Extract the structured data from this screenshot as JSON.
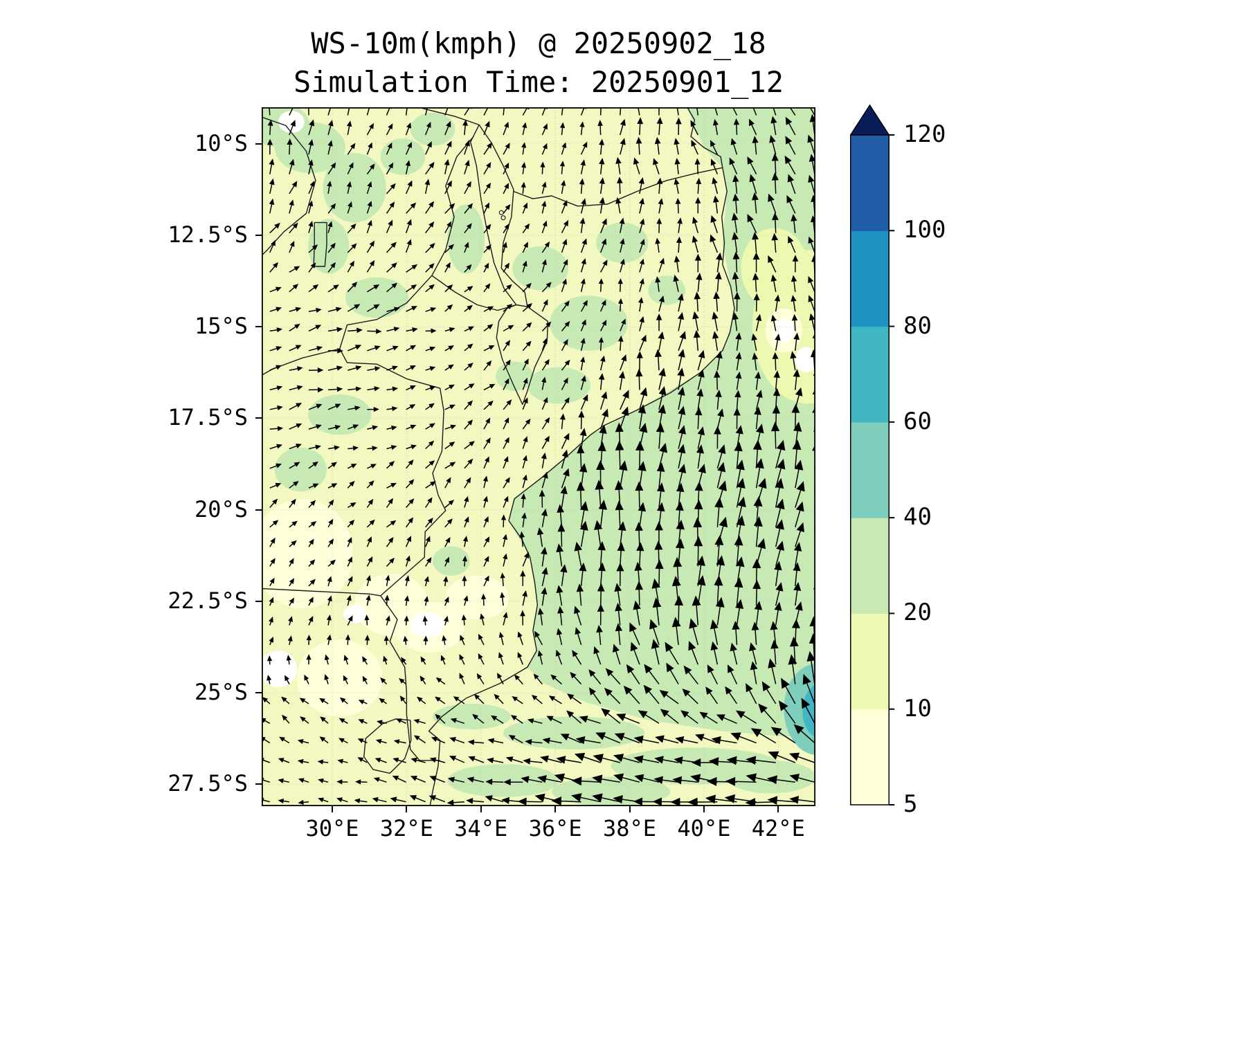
{
  "figure": {
    "title_line1": "WS-10m(kmph) @ 20250902_18",
    "title_line2": "Simulation Time: 20250901_12"
  },
  "axes": {
    "x_ticks": [
      "30°E",
      "32°E",
      "34°E",
      "36°E",
      "38°E",
      "40°E",
      "42°E"
    ],
    "x_tick_lons": [
      30,
      32,
      34,
      36,
      38,
      40,
      42
    ],
    "y_ticks": [
      "10°S",
      "12.5°S",
      "15°S",
      "17.5°S",
      "20°S",
      "22.5°S",
      "25°S",
      "27.5°S"
    ],
    "y_tick_lats": [
      10,
      12.5,
      15,
      17.5,
      20,
      22.5,
      25,
      27.5
    ]
  },
  "colorbar": {
    "tick_labels": [
      "5",
      "10",
      "20",
      "40",
      "60",
      "80",
      "100",
      "120"
    ],
    "segment_colors": [
      "#ffffd9",
      "#edf8b1",
      "#c7e9b4",
      "#7fcdbb",
      "#41b6c4",
      "#1d91c0",
      "#225ea8"
    ],
    "extend_color": "#081d58"
  },
  "chart_data": {
    "type": "heatmap",
    "title": "WS-10m(kmph) @ 20250902_18",
    "subtitle": "Simulation Time: 20250901_12",
    "variable": "10 m wind speed with wind vector quiver overlay",
    "units": "kmph",
    "lon_range_east": [
      28.1,
      43.0
    ],
    "lat_range_south": [
      9.0,
      28.1
    ],
    "contour_levels": [
      5,
      10,
      20,
      40,
      60,
      80,
      100,
      120
    ],
    "colormap": [
      "#ffffd9",
      "#edf8b1",
      "#c7e9b4",
      "#7fcdbb",
      "#41b6c4",
      "#1d91c0",
      "#225ea8",
      "#081d58"
    ],
    "base_color": "#f2f8c0",
    "wind_grid": {
      "lons": [
        29,
        31,
        33,
        35,
        37,
        39,
        41,
        43
      ],
      "lats_south": [
        9,
        11,
        13,
        15,
        17,
        19,
        21,
        23,
        25,
        26.5,
        28
      ],
      "u_kmph": [
        [
          2,
          3,
          3,
          2,
          1,
          -2,
          -4,
          -5
        ],
        [
          3,
          4,
          4,
          3,
          2,
          -2,
          -4,
          -5
        ],
        [
          5,
          5,
          4,
          3,
          2,
          0,
          -3,
          -4
        ],
        [
          9,
          8,
          6,
          4,
          3,
          2,
          0,
          -2
        ],
        [
          8,
          8,
          5,
          4,
          4,
          3,
          2,
          1
        ],
        [
          5,
          5,
          4,
          3,
          2,
          3,
          4,
          4
        ],
        [
          3,
          3,
          3,
          2,
          0,
          2,
          5,
          6
        ],
        [
          2,
          1,
          1,
          0,
          -3,
          -2,
          2,
          5
        ],
        [
          -2,
          -3,
          -4,
          -5,
          -10,
          -12,
          -10,
          -4
        ],
        [
          -5,
          -6,
          -8,
          -14,
          -20,
          -24,
          -26,
          -22
        ],
        [
          -6,
          -8,
          -12,
          -20,
          -26,
          -28,
          -28,
          -26
        ]
      ],
      "v_kmph": [
        [
          10,
          10,
          9,
          8,
          10,
          12,
          14,
          14
        ],
        [
          9,
          9,
          8,
          8,
          10,
          13,
          15,
          15
        ],
        [
          7,
          7,
          6,
          6,
          9,
          13,
          15,
          15
        ],
        [
          3,
          2,
          2,
          4,
          8,
          13,
          15,
          15
        ],
        [
          2,
          1,
          2,
          6,
          14,
          18,
          18,
          17
        ],
        [
          3,
          3,
          4,
          10,
          22,
          26,
          26,
          24
        ],
        [
          4,
          4,
          5,
          10,
          24,
          28,
          27,
          25
        ],
        [
          4,
          4,
          5,
          8,
          22,
          26,
          26,
          24
        ],
        [
          3,
          3,
          4,
          5,
          12,
          16,
          20,
          30
        ],
        [
          2,
          2,
          3,
          4,
          6,
          6,
          4,
          12
        ],
        [
          1,
          1,
          2,
          3,
          3,
          2,
          0,
          2
        ]
      ]
    },
    "regions": [
      {
        "name": "ocean-channel",
        "level_kmph": "20-40",
        "color": "#c7e9b4",
        "shape": "polygon",
        "points": [
          [
            43.2,
            8.9
          ],
          [
            39.5,
            8.9
          ],
          [
            40.0,
            10.1
          ],
          [
            40.5,
            10.65
          ],
          [
            40.62,
            11.3
          ],
          [
            40.5,
            12.7
          ],
          [
            40.72,
            13.9
          ],
          [
            40.82,
            14.5
          ],
          [
            40.6,
            15.5
          ],
          [
            39.9,
            16.25
          ],
          [
            38.15,
            17.3
          ],
          [
            36.95,
            17.95
          ],
          [
            36.25,
            18.6
          ],
          [
            35.6,
            19.15
          ],
          [
            34.9,
            19.7
          ],
          [
            34.75,
            20.3
          ],
          [
            35.32,
            21.3
          ],
          [
            35.52,
            22.6
          ],
          [
            35.4,
            23.3
          ],
          [
            35.5,
            23.85
          ],
          [
            35.25,
            24.3
          ],
          [
            35.7,
            24.75
          ],
          [
            36.8,
            25.25
          ],
          [
            38.5,
            25.75
          ],
          [
            40.5,
            26.05
          ],
          [
            42.2,
            26.2
          ],
          [
            43.2,
            26.1
          ]
        ]
      },
      {
        "name": "ocean-pale-1",
        "level_kmph": "10-20",
        "color": "#edf8b1",
        "shape": "ellipse",
        "lon": 42.8,
        "lat": 15.0,
        "rx": 1.5,
        "ry": 2.1
      },
      {
        "name": "ocean-pale-2",
        "level_kmph": "10-20",
        "color": "#edf8b1",
        "shape": "ellipse",
        "lon": 41.9,
        "lat": 13.4,
        "rx": 0.9,
        "ry": 1.1
      },
      {
        "name": "land-green-1",
        "level_kmph": "20-40",
        "color": "#c7e9b4",
        "shape": "ellipse",
        "lon": 29.4,
        "lat": 10.1,
        "rx": 0.95,
        "ry": 0.7
      },
      {
        "name": "land-green-2",
        "level_kmph": "20-40",
        "color": "#c7e9b4",
        "shape": "ellipse",
        "lon": 30.6,
        "lat": 11.2,
        "rx": 0.85,
        "ry": 0.95
      },
      {
        "name": "land-green-3",
        "level_kmph": "20-40",
        "color": "#c7e9b4",
        "shape": "ellipse",
        "lon": 31.9,
        "lat": 10.35,
        "rx": 0.6,
        "ry": 0.5
      },
      {
        "name": "land-green-4",
        "level_kmph": "20-40",
        "color": "#c7e9b4",
        "shape": "ellipse",
        "lon": 29.9,
        "lat": 12.8,
        "rx": 0.55,
        "ry": 0.75
      },
      {
        "name": "land-green-5",
        "level_kmph": "20-40",
        "color": "#c7e9b4",
        "shape": "ellipse",
        "lon": 31.2,
        "lat": 14.2,
        "rx": 0.85,
        "ry": 0.55
      },
      {
        "name": "land-green-6",
        "level_kmph": "20-40",
        "color": "#c7e9b4",
        "shape": "ellipse",
        "lon": 33.6,
        "lat": 12.6,
        "rx": 0.5,
        "ry": 0.95
      },
      {
        "name": "land-green-7",
        "level_kmph": "20-40",
        "color": "#c7e9b4",
        "shape": "ellipse",
        "lon": 35.6,
        "lat": 13.4,
        "rx": 0.75,
        "ry": 0.6
      },
      {
        "name": "land-green-8",
        "level_kmph": "20-40",
        "color": "#c7e9b4",
        "shape": "ellipse",
        "lon": 36.9,
        "lat": 14.9,
        "rx": 1.05,
        "ry": 0.75
      },
      {
        "name": "land-green-9",
        "level_kmph": "20-40",
        "color": "#c7e9b4",
        "shape": "ellipse",
        "lon": 36.1,
        "lat": 16.6,
        "rx": 0.85,
        "ry": 0.5
      },
      {
        "name": "land-green-10",
        "level_kmph": "20-40",
        "color": "#c7e9b4",
        "shape": "ellipse",
        "lon": 34.9,
        "lat": 16.35,
        "rx": 0.5,
        "ry": 0.4
      },
      {
        "name": "land-green-11",
        "level_kmph": "20-40",
        "color": "#c7e9b4",
        "shape": "ellipse",
        "lon": 30.2,
        "lat": 17.4,
        "rx": 0.85,
        "ry": 0.55
      },
      {
        "name": "land-green-12",
        "level_kmph": "20-40",
        "color": "#c7e9b4",
        "shape": "ellipse",
        "lon": 29.15,
        "lat": 18.9,
        "rx": 0.7,
        "ry": 0.6
      },
      {
        "name": "land-green-13",
        "level_kmph": "20-40",
        "color": "#c7e9b4",
        "shape": "ellipse",
        "lon": 33.2,
        "lat": 21.4,
        "rx": 0.5,
        "ry": 0.4
      },
      {
        "name": "land-green-14",
        "level_kmph": "20-40",
        "color": "#c7e9b4",
        "shape": "ellipse",
        "lon": 28.6,
        "lat": 9.5,
        "rx": 0.8,
        "ry": 0.6
      },
      {
        "name": "land-green-15",
        "level_kmph": "20-40",
        "color": "#c7e9b4",
        "shape": "ellipse",
        "lon": 32.7,
        "lat": 9.6,
        "rx": 0.6,
        "ry": 0.45
      },
      {
        "name": "land-green-16",
        "level_kmph": "20-40",
        "color": "#c7e9b4",
        "shape": "ellipse",
        "lon": 37.8,
        "lat": 12.7,
        "rx": 0.7,
        "ry": 0.55
      },
      {
        "name": "land-green-17",
        "level_kmph": "20-40",
        "color": "#c7e9b4",
        "shape": "ellipse",
        "lon": 39.0,
        "lat": 14.0,
        "rx": 0.5,
        "ry": 0.4
      },
      {
        "name": "south-streak-1",
        "level_kmph": "20-40",
        "color": "#c7e9b4",
        "shape": "ellipse",
        "lon": 36.5,
        "lat": 26.1,
        "rx": 1.9,
        "ry": 0.45
      },
      {
        "name": "south-streak-2",
        "level_kmph": "20-40",
        "color": "#c7e9b4",
        "shape": "ellipse",
        "lon": 39.8,
        "lat": 27.0,
        "rx": 2.3,
        "ry": 0.5
      },
      {
        "name": "south-streak-3",
        "level_kmph": "20-40",
        "color": "#c7e9b4",
        "shape": "ellipse",
        "lon": 34.6,
        "lat": 27.4,
        "rx": 1.5,
        "ry": 0.45
      },
      {
        "name": "south-streak-4",
        "level_kmph": "20-40",
        "color": "#c7e9b4",
        "shape": "ellipse",
        "lon": 33.75,
        "lat": 25.65,
        "rx": 1.05,
        "ry": 0.35
      },
      {
        "name": "south-streak-5",
        "level_kmph": "20-40",
        "color": "#c7e9b4",
        "shape": "ellipse",
        "lon": 37.5,
        "lat": 27.7,
        "rx": 1.6,
        "ry": 0.4
      },
      {
        "name": "south-streak-6",
        "level_kmph": "20-40",
        "color": "#c7e9b4",
        "shape": "ellipse",
        "lon": 41.8,
        "lat": 27.3,
        "rx": 1.2,
        "ry": 0.45
      },
      {
        "name": "land-cream-1",
        "level_kmph": "5-10",
        "color": "#ffffd9",
        "shape": "ellipse",
        "lon": 29.2,
        "lat": 21.2,
        "rx": 1.35,
        "ry": 1.5
      },
      {
        "name": "land-cream-2",
        "level_kmph": "5-10",
        "color": "#ffffd9",
        "shape": "ellipse",
        "lon": 31.6,
        "lat": 22.6,
        "rx": 1.0,
        "ry": 0.85
      },
      {
        "name": "land-cream-3",
        "level_kmph": "5-10",
        "color": "#ffffd9",
        "shape": "ellipse",
        "lon": 30.2,
        "lat": 24.6,
        "rx": 1.15,
        "ry": 1.05
      },
      {
        "name": "land-cream-4",
        "level_kmph": "5-10",
        "color": "#ffffd9",
        "shape": "ellipse",
        "lon": 33.9,
        "lat": 22.4,
        "rx": 0.85,
        "ry": 0.6
      },
      {
        "name": "land-cream-5",
        "level_kmph": "5-10",
        "color": "#ffffd9",
        "shape": "ellipse",
        "lon": 32.6,
        "lat": 23.2,
        "rx": 0.95,
        "ry": 0.7
      },
      {
        "name": "land-white-1",
        "level_kmph": "<5",
        "color": "#ffffff",
        "shape": "ellipse",
        "lon": 32.55,
        "lat": 23.15,
        "rx": 0.45,
        "ry": 0.35
      },
      {
        "name": "land-white-2",
        "level_kmph": "<5",
        "color": "#ffffff",
        "shape": "ellipse",
        "lon": 28.55,
        "lat": 24.35,
        "rx": 0.5,
        "ry": 0.5
      },
      {
        "name": "land-white-3",
        "level_kmph": "<5",
        "color": "#ffffff",
        "shape": "ellipse",
        "lon": 30.6,
        "lat": 22.85,
        "rx": 0.3,
        "ry": 0.25
      },
      {
        "name": "land-white-4",
        "level_kmph": "<5",
        "color": "#ffffff",
        "shape": "ellipse",
        "lon": 28.9,
        "lat": 9.4,
        "rx": 0.35,
        "ry": 0.3
      },
      {
        "name": "ocean-white-1",
        "level_kmph": "5-10",
        "color": "#ffffd9",
        "shape": "ellipse",
        "lon": 42.15,
        "lat": 15.1,
        "rx": 0.5,
        "ry": 0.6
      },
      {
        "name": "ocean-white-1b",
        "level_kmph": "<5",
        "color": "#ffffff",
        "shape": "ellipse",
        "lon": 42.15,
        "lat": 15.1,
        "rx": 0.28,
        "ry": 0.33
      },
      {
        "name": "ocean-white-2",
        "level_kmph": "<5",
        "color": "#ffffff",
        "shape": "ellipse",
        "lon": 42.75,
        "lat": 15.9,
        "rx": 0.3,
        "ry": 0.35
      },
      {
        "name": "teal-patch-outer",
        "level_kmph": "40-60",
        "color": "#7fcdbb",
        "shape": "ellipse",
        "lon": 43.05,
        "lat": 25.45,
        "rx": 0.9,
        "ry": 1.25
      },
      {
        "name": "teal-patch-inner",
        "level_kmph": "60-80",
        "color": "#41b6c4",
        "shape": "ellipse",
        "lon": 43.15,
        "lat": 25.5,
        "rx": 0.5,
        "ry": 0.75
      }
    ]
  }
}
